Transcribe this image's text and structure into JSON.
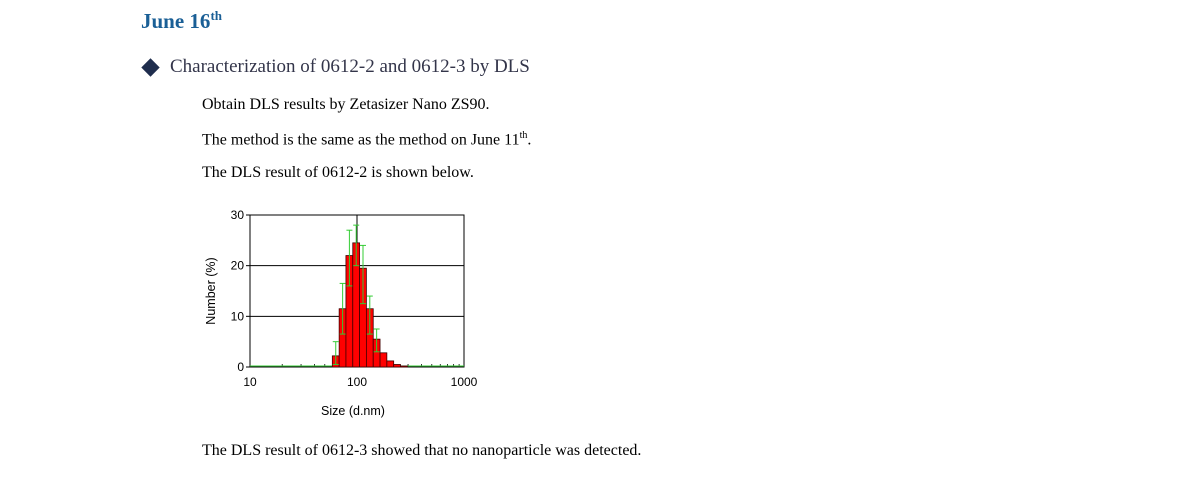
{
  "heading": {
    "text": "June 16",
    "sup": "th"
  },
  "section": {
    "bullet_icon": "diamond-bullet-icon",
    "title": "Characterization of 0612-2 and 0612-3 by DLS"
  },
  "paragraphs": {
    "p1": "Obtain DLS results by Zetasizer Nano ZS90.",
    "p2_text": "The method is the same as the method on June 11",
    "p2_sup": "th",
    "p2_end": ".",
    "p3": "The DLS result of 0612-2 is shown below.",
    "p4": "The DLS result of 0612-3 showed that no nanoparticle was detected."
  },
  "colors": {
    "heading": "#1a5f96",
    "bar_fill": "#ff0000",
    "error_bar": "#33cc33"
  },
  "chart_data": {
    "type": "bar",
    "xlabel": "Size (d.nm)",
    "ylabel": "Number (%)",
    "xscale": "log",
    "xlim": [
      10,
      1000
    ],
    "ylim": [
      0,
      30
    ],
    "xticks": [
      "10",
      "100",
      "1000"
    ],
    "yticks": [
      "0",
      "10",
      "20",
      "30"
    ],
    "grid": true,
    "bars": [
      {
        "x": [
          58.8,
          68.1
        ],
        "y": 2.2
      },
      {
        "x": [
          68.1,
          78.8
        ],
        "y": 11.5
      },
      {
        "x": [
          78.8,
          91.3
        ],
        "y": 22.0
      },
      {
        "x": [
          91.3,
          105.7
        ],
        "y": 24.5
      },
      {
        "x": [
          105.7,
          122.4
        ],
        "y": 19.5
      },
      {
        "x": [
          122.4,
          141.8
        ],
        "y": 11.5
      },
      {
        "x": [
          141.8,
          164.2
        ],
        "y": 5.5
      },
      {
        "x": [
          164.2,
          190.1
        ],
        "y": 2.8
      },
      {
        "x": [
          190.1,
          220.2
        ],
        "y": 1.2
      },
      {
        "x": [
          220.2,
          255.0
        ],
        "y": 0.5
      },
      {
        "x": [
          255.0,
          295.3
        ],
        "y": 0.2
      }
    ],
    "error_bars": [
      {
        "x": 73.4,
        "low": 6.5,
        "high": 16.5
      },
      {
        "x": 84.9,
        "low": 16.0,
        "high": 27.0
      },
      {
        "x": 98.3,
        "low": 20.0,
        "high": 28.0
      },
      {
        "x": 113.8,
        "low": 12.5,
        "high": 24.0
      },
      {
        "x": 131.7,
        "low": 6.5,
        "high": 14.0
      },
      {
        "x": 152.6,
        "low": 3.0,
        "high": 7.5
      },
      {
        "x": 63.3,
        "low": 0.5,
        "high": 5.0
      }
    ]
  }
}
